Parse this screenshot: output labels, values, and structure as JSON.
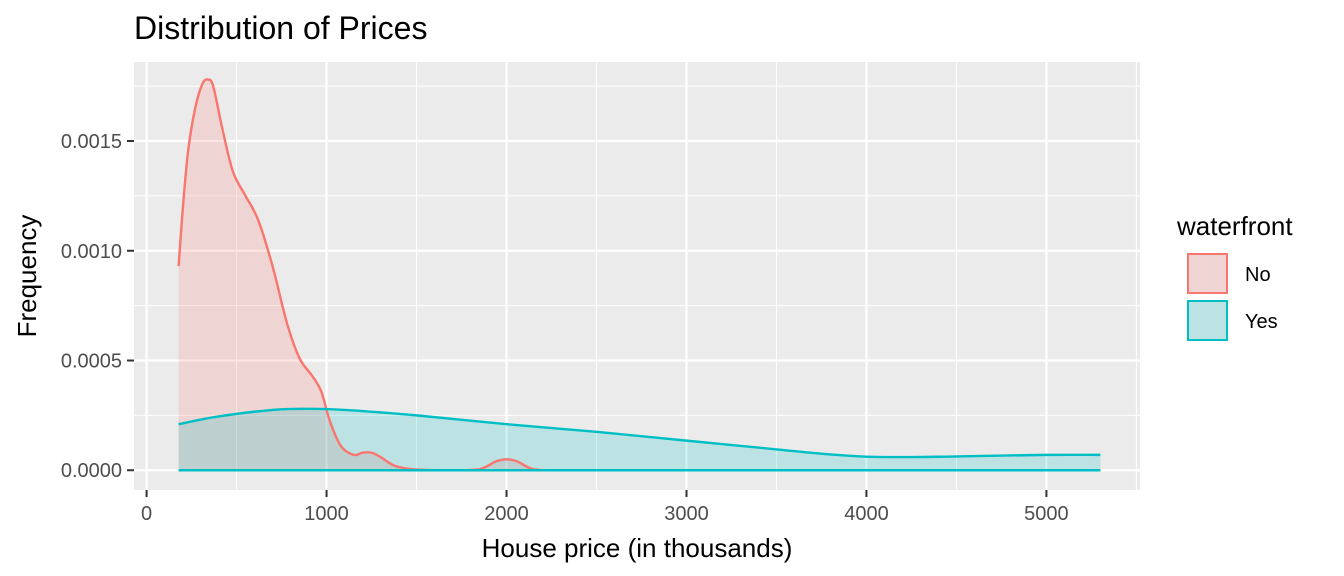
{
  "chart_data": {
    "type": "area",
    "title": "Distribution of Prices",
    "xlabel": "House price (in thousands)",
    "ylabel": "Frequency",
    "xlim": [
      -70,
      5520
    ],
    "ylim": [
      -9e-05,
      0.00186
    ],
    "xticks": [
      0,
      1000,
      2000,
      3000,
      4000,
      5000
    ],
    "xtick_labels": [
      "0",
      "1000",
      "2000",
      "3000",
      "4000",
      "5000"
    ],
    "xminor": [
      500,
      1500,
      2500,
      3500,
      4500,
      5500
    ],
    "yticks": [
      0,
      0.0005,
      0.001,
      0.0015
    ],
    "ytick_labels": [
      "0.0000",
      "0.0005",
      "0.0010",
      "0.0015"
    ],
    "yminor": [
      0.00025,
      0.00075,
      0.00125,
      0.00175
    ],
    "grid": true,
    "legend": {
      "title": "waterfront",
      "position": "right",
      "entries": [
        "No",
        "Yes"
      ]
    },
    "series": [
      {
        "name": "No",
        "line_color": "#F8766D",
        "fill_color": "#F8766D",
        "fill_opacity": 0.2,
        "points": [
          [
            178,
            0.00093
          ],
          [
            200,
            0.00118
          ],
          [
            230,
            0.00145
          ],
          [
            270,
            0.00165
          ],
          [
            310,
            0.00176
          ],
          [
            340,
            0.00178
          ],
          [
            370,
            0.00175
          ],
          [
            420,
            0.00156
          ],
          [
            480,
            0.00136
          ],
          [
            550,
            0.00125
          ],
          [
            620,
            0.00114
          ],
          [
            700,
            0.00093
          ],
          [
            780,
            0.00067
          ],
          [
            850,
            0.00051
          ],
          [
            920,
            0.00043
          ],
          [
            970,
            0.00036
          ],
          [
            1020,
            0.00022
          ],
          [
            1080,
            0.00011
          ],
          [
            1150,
            7e-05
          ],
          [
            1200,
            8e-05
          ],
          [
            1250,
            8e-05
          ],
          [
            1300,
            6e-05
          ],
          [
            1380,
            2e-05
          ],
          [
            1500,
            3e-06
          ],
          [
            1700,
            0.0
          ],
          [
            1850,
            5e-06
          ],
          [
            1940,
            4e-05
          ],
          [
            2000,
            5e-05
          ],
          [
            2060,
            4e-05
          ],
          [
            2150,
            5e-06
          ],
          [
            2300,
            0.0
          ],
          [
            3000,
            0.0
          ],
          [
            4000,
            0.0
          ],
          [
            5300,
            0.0
          ]
        ]
      },
      {
        "name": "Yes",
        "line_color": "#00BFC4",
        "fill_color": "#00BFC4",
        "fill_opacity": 0.2,
        "points": [
          [
            178,
            0.00021
          ],
          [
            400,
            0.000245
          ],
          [
            700,
            0.000275
          ],
          [
            900,
            0.00028
          ],
          [
            1100,
            0.000275
          ],
          [
            1500,
            0.00025
          ],
          [
            2000,
            0.00021
          ],
          [
            2500,
            0.000175
          ],
          [
            3000,
            0.000135
          ],
          [
            3500,
            9.5e-05
          ],
          [
            3800,
            7.2e-05
          ],
          [
            4000,
            6.2e-05
          ],
          [
            4250,
            6e-05
          ],
          [
            4500,
            6.3e-05
          ],
          [
            5000,
            7e-05
          ],
          [
            5300,
            7e-05
          ]
        ]
      }
    ]
  }
}
